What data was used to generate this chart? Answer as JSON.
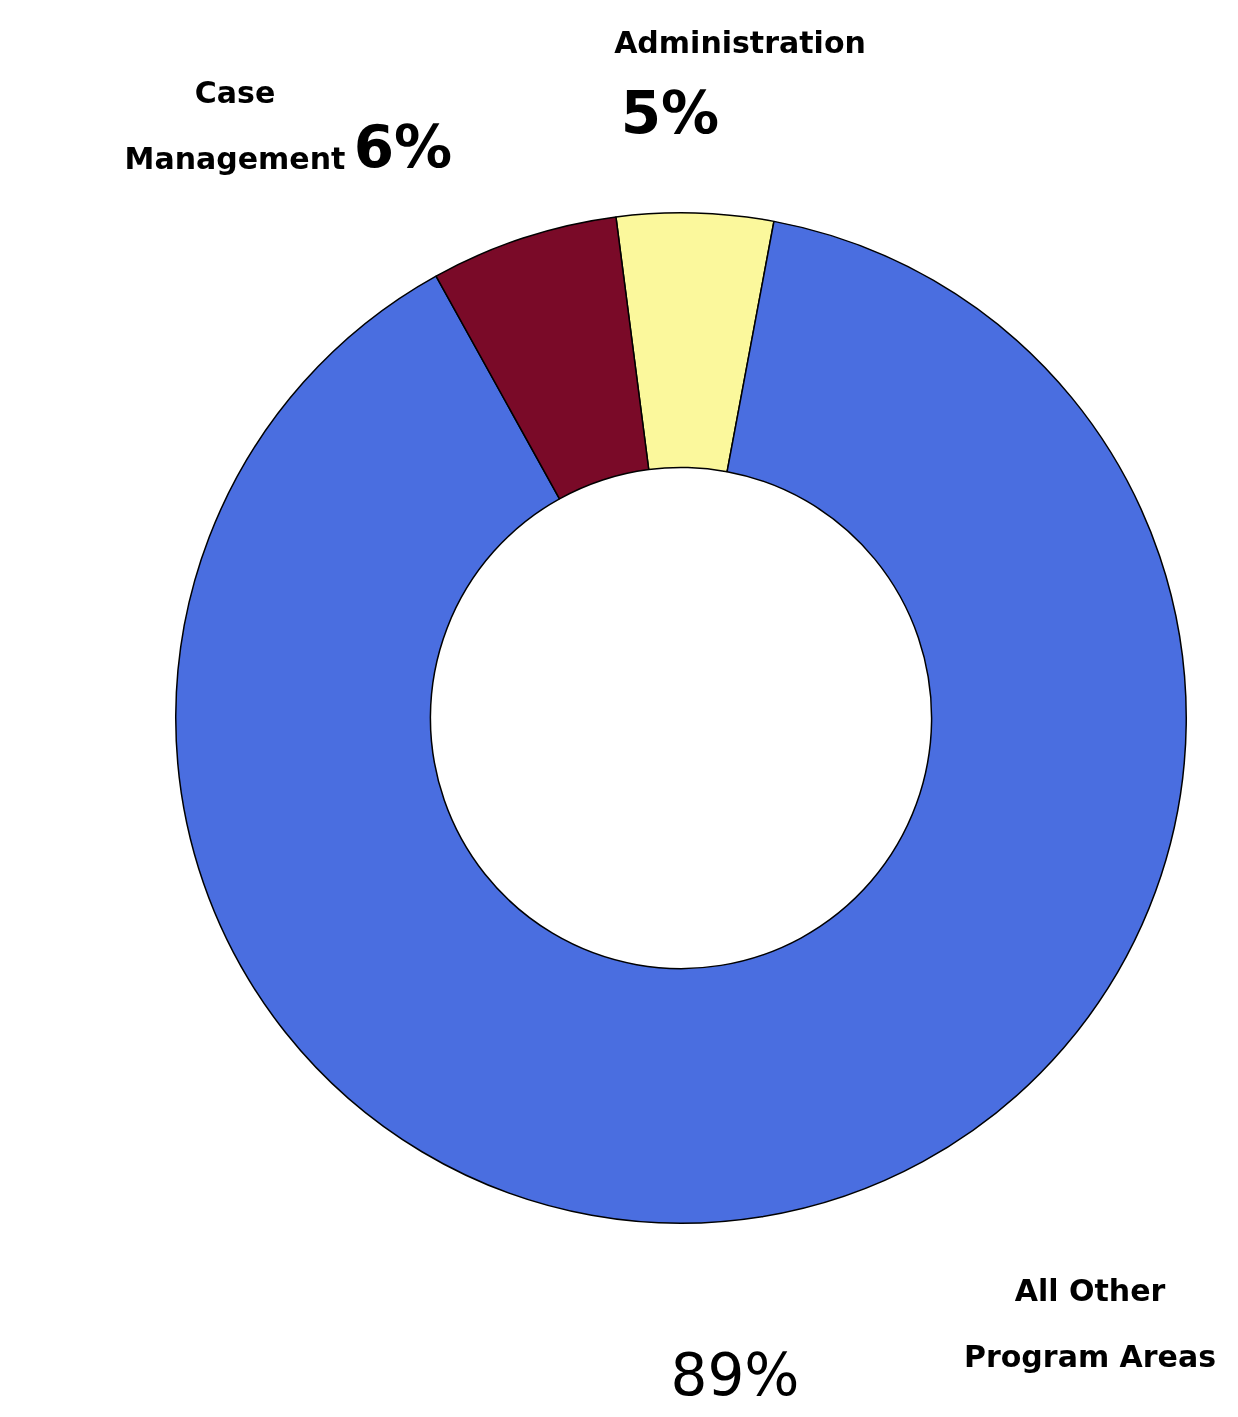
{
  "chart_data": {
    "type": "donut",
    "categories": [
      "Administration",
      "All Other Program Areas",
      "Case Management"
    ],
    "values": [
      5,
      89,
      6
    ],
    "colors": [
      "#fbf89c",
      "#4a6ee0",
      "#7a0a28"
    ],
    "value_labels": [
      "5%",
      "89%",
      "6%"
    ],
    "legend": false
  }
}
